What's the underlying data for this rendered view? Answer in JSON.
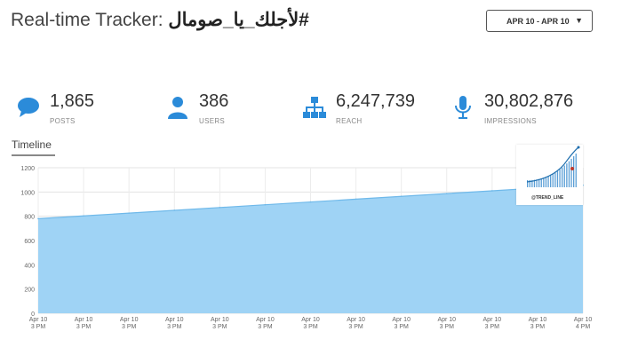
{
  "header": {
    "title_prefix": "Real-time Tracker:",
    "hashtag": "#لأجلك_يا_صومال",
    "date_range": "APR 10 - APR 10"
  },
  "stats": [
    {
      "value": "1,865",
      "label": "POSTS",
      "icon": "speech-bubble-icon"
    },
    {
      "value": "386",
      "label": "USERS",
      "icon": "user-icon"
    },
    {
      "value": "6,247,739",
      "label": "REACH",
      "icon": "org-chart-icon"
    },
    {
      "value": "30,802,876",
      "label": "IMPRESSIONS",
      "icon": "microphone-icon"
    }
  ],
  "timeline": {
    "tab_label": "Timeline"
  },
  "thumbnail": {
    "caption": "@TREND_LINE"
  },
  "colors": {
    "accent": "#2b8bd9",
    "area_fill": "#9fd3f5",
    "area_stroke": "#6fb9ea"
  },
  "chart_data": {
    "type": "area",
    "x_labels": [
      [
        "Apr 10",
        "3 PM"
      ],
      [
        "Apr 10",
        "3 PM"
      ],
      [
        "Apr 10",
        "3 PM"
      ],
      [
        "Apr 10",
        "3 PM"
      ],
      [
        "Apr 10",
        "3 PM"
      ],
      [
        "Apr 10",
        "3 PM"
      ],
      [
        "Apr 10",
        "3 PM"
      ],
      [
        "Apr 10",
        "3 PM"
      ],
      [
        "Apr 10",
        "3 PM"
      ],
      [
        "Apr 10",
        "3 PM"
      ],
      [
        "Apr 10",
        "3 PM"
      ],
      [
        "Apr 10",
        "3 PM"
      ],
      [
        "Apr 10",
        "4 PM"
      ]
    ],
    "y_ticks": [
      0,
      200,
      400,
      600,
      800,
      1000,
      1200
    ],
    "ylim": [
      0,
      1200
    ],
    "values": [
      780,
      803,
      826,
      849,
      872,
      895,
      918,
      941,
      964,
      987,
      1010,
      1033,
      1056
    ],
    "grid": true
  }
}
